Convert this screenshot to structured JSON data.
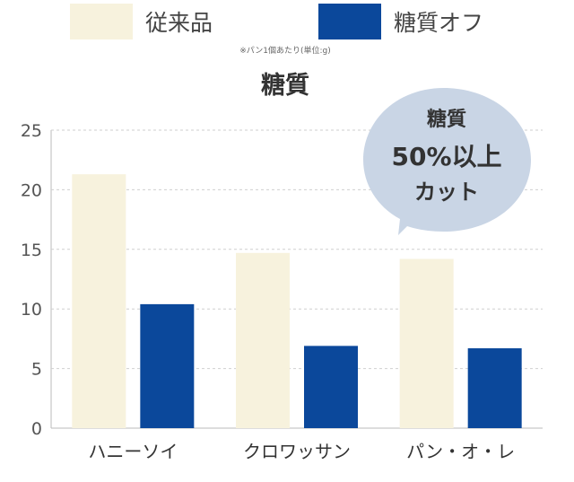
{
  "legend": {
    "conventional_label": "従来品",
    "sugar_off_label": "糖質オフ"
  },
  "note": "※パン1個あたり(単位:g)",
  "chart_data": {
    "type": "bar",
    "title": "糖質",
    "categories": [
      "ハニーソイ",
      "クロワッサン",
      "パン・オ・レ"
    ],
    "series": [
      {
        "name": "従来品",
        "values": [
          21.3,
          14.7,
          14.2
        ],
        "color": "#f7f2dd"
      },
      {
        "name": "糖質オフ",
        "values": [
          10.4,
          6.9,
          6.7
        ],
        "color": "#0b489b"
      }
    ],
    "ylim": [
      0,
      25
    ],
    "yticks": [
      0,
      5,
      10,
      15,
      20,
      25
    ],
    "grid": true,
    "legend_position": "top"
  },
  "callout": {
    "line1": "糖質",
    "line2": "50%以上",
    "line3": "カット",
    "color": "#c9d5e5"
  },
  "colors": {
    "grid": "#cfcfcf",
    "axis": "#bbbbbb"
  }
}
